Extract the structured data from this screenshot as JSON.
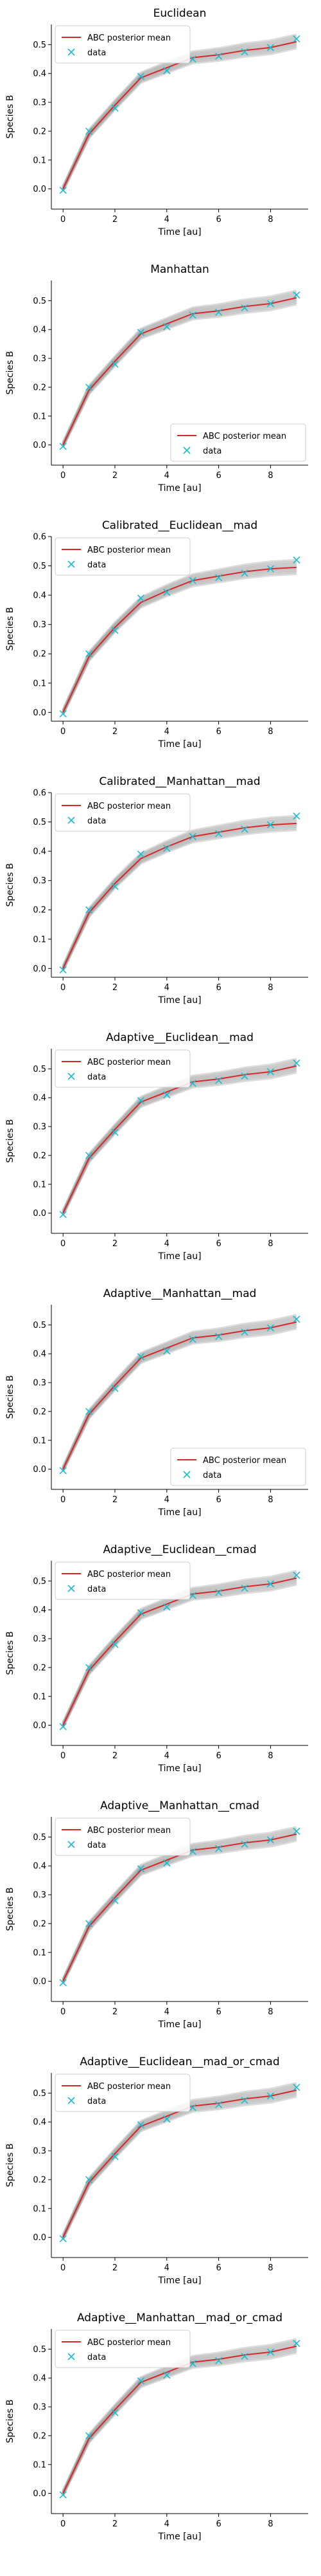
{
  "chart_data": [
    {
      "type": "line",
      "title": "Euclidean",
      "xlabel": "Time [au]",
      "ylabel": "Species B",
      "xlim": [
        -0.45,
        9.45
      ],
      "ylim": [
        -0.07,
        0.57
      ],
      "x": [
        0,
        1,
        2,
        3,
        4,
        5,
        6,
        7,
        8,
        9
      ],
      "xticks": [
        0,
        2,
        4,
        6,
        8
      ],
      "yticks": [
        0.0,
        0.1,
        0.2,
        0.3,
        0.4,
        0.5
      ],
      "grid": false,
      "legend_position": "upper left",
      "legend": [
        {
          "label": "ABC posterior mean",
          "color": "#d62728",
          "marker": "line"
        },
        {
          "label": "data",
          "color": "#17becf",
          "marker": "x"
        }
      ],
      "series": [
        {
          "name": "ABC posterior mean",
          "values": [
            0.0,
            0.19,
            0.29,
            0.385,
            0.42,
            0.455,
            0.465,
            0.48,
            0.49,
            0.51
          ]
        },
        {
          "name": "data",
          "values": [
            -0.005,
            0.2,
            0.28,
            0.39,
            0.41,
            0.45,
            0.46,
            0.475,
            0.49,
            0.52
          ]
        }
      ]
    },
    {
      "type": "line",
      "title": "Manhattan",
      "xlabel": "Time [au]",
      "ylabel": "Species B",
      "xlim": [
        -0.45,
        9.45
      ],
      "ylim": [
        -0.07,
        0.57
      ],
      "x": [
        0,
        1,
        2,
        3,
        4,
        5,
        6,
        7,
        8,
        9
      ],
      "xticks": [
        0,
        2,
        4,
        6,
        8
      ],
      "yticks": [
        0.0,
        0.1,
        0.2,
        0.3,
        0.4,
        0.5
      ],
      "grid": false,
      "legend_position": "lower right",
      "legend": [
        {
          "label": "ABC posterior mean",
          "color": "#d62728",
          "marker": "line"
        },
        {
          "label": "data",
          "color": "#17becf",
          "marker": "x"
        }
      ],
      "series": [
        {
          "name": "ABC posterior mean",
          "values": [
            0.0,
            0.19,
            0.29,
            0.385,
            0.42,
            0.455,
            0.465,
            0.48,
            0.49,
            0.51
          ]
        },
        {
          "name": "data",
          "values": [
            -0.005,
            0.2,
            0.28,
            0.39,
            0.41,
            0.45,
            0.46,
            0.475,
            0.49,
            0.52
          ]
        }
      ]
    },
    {
      "type": "line",
      "title": "Calibrated__Euclidean__mad",
      "xlabel": "Time [au]",
      "ylabel": "Species B",
      "xlim": [
        -0.45,
        9.45
      ],
      "ylim": [
        -0.03,
        0.6
      ],
      "x": [
        0,
        1,
        2,
        3,
        4,
        5,
        6,
        7,
        8,
        9
      ],
      "xticks": [
        0,
        2,
        4,
        6,
        8
      ],
      "yticks": [
        0.0,
        0.1,
        0.2,
        0.3,
        0.4,
        0.5,
        0.6
      ],
      "grid": false,
      "legend_position": "upper left",
      "legend": [
        {
          "label": "ABC posterior mean",
          "color": "#d62728",
          "marker": "line"
        },
        {
          "label": "data",
          "color": "#17becf",
          "marker": "x"
        }
      ],
      "series": [
        {
          "name": "ABC posterior mean",
          "values": [
            0.0,
            0.19,
            0.29,
            0.375,
            0.415,
            0.45,
            0.465,
            0.48,
            0.49,
            0.495
          ]
        },
        {
          "name": "data",
          "values": [
            -0.005,
            0.2,
            0.28,
            0.39,
            0.41,
            0.45,
            0.46,
            0.475,
            0.49,
            0.52
          ]
        }
      ]
    },
    {
      "type": "line",
      "title": "Calibrated__Manhattan__mad",
      "xlabel": "Time [au]",
      "ylabel": "Species B",
      "xlim": [
        -0.45,
        9.45
      ],
      "ylim": [
        -0.03,
        0.6
      ],
      "x": [
        0,
        1,
        2,
        3,
        4,
        5,
        6,
        7,
        8,
        9
      ],
      "xticks": [
        0,
        2,
        4,
        6,
        8
      ],
      "yticks": [
        0.0,
        0.1,
        0.2,
        0.3,
        0.4,
        0.5,
        0.6
      ],
      "grid": false,
      "legend_position": "upper left",
      "legend": [
        {
          "label": "ABC posterior mean",
          "color": "#d62728",
          "marker": "line"
        },
        {
          "label": "data",
          "color": "#17becf",
          "marker": "x"
        }
      ],
      "series": [
        {
          "name": "ABC posterior mean",
          "values": [
            0.0,
            0.19,
            0.29,
            0.375,
            0.415,
            0.45,
            0.465,
            0.48,
            0.49,
            0.495
          ]
        },
        {
          "name": "data",
          "values": [
            -0.005,
            0.2,
            0.28,
            0.39,
            0.41,
            0.45,
            0.46,
            0.475,
            0.49,
            0.52
          ]
        }
      ]
    },
    {
      "type": "line",
      "title": "Adaptive__Euclidean__mad",
      "xlabel": "Time [au]",
      "ylabel": "Species B",
      "xlim": [
        -0.45,
        9.45
      ],
      "ylim": [
        -0.07,
        0.57
      ],
      "x": [
        0,
        1,
        2,
        3,
        4,
        5,
        6,
        7,
        8,
        9
      ],
      "xticks": [
        0,
        2,
        4,
        6,
        8
      ],
      "yticks": [
        0.0,
        0.1,
        0.2,
        0.3,
        0.4,
        0.5
      ],
      "grid": false,
      "legend_position": "upper left",
      "legend": [
        {
          "label": "ABC posterior mean",
          "color": "#d62728",
          "marker": "line"
        },
        {
          "label": "data",
          "color": "#17becf",
          "marker": "x"
        }
      ],
      "series": [
        {
          "name": "ABC posterior mean",
          "values": [
            0.0,
            0.19,
            0.29,
            0.385,
            0.42,
            0.455,
            0.465,
            0.48,
            0.49,
            0.51
          ]
        },
        {
          "name": "data",
          "values": [
            -0.005,
            0.2,
            0.28,
            0.39,
            0.41,
            0.45,
            0.46,
            0.475,
            0.49,
            0.52
          ]
        }
      ]
    },
    {
      "type": "line",
      "title": "Adaptive__Manhattan__mad",
      "xlabel": "Time [au]",
      "ylabel": "Species B",
      "xlim": [
        -0.45,
        9.45
      ],
      "ylim": [
        -0.07,
        0.57
      ],
      "x": [
        0,
        1,
        2,
        3,
        4,
        5,
        6,
        7,
        8,
        9
      ],
      "xticks": [
        0,
        2,
        4,
        6,
        8
      ],
      "yticks": [
        0.0,
        0.1,
        0.2,
        0.3,
        0.4,
        0.5
      ],
      "grid": false,
      "legend_position": "lower right",
      "legend": [
        {
          "label": "ABC posterior mean",
          "color": "#d62728",
          "marker": "line"
        },
        {
          "label": "data",
          "color": "#17becf",
          "marker": "x"
        }
      ],
      "series": [
        {
          "name": "ABC posterior mean",
          "values": [
            0.0,
            0.19,
            0.29,
            0.385,
            0.42,
            0.455,
            0.465,
            0.48,
            0.49,
            0.51
          ]
        },
        {
          "name": "data",
          "values": [
            -0.005,
            0.2,
            0.28,
            0.39,
            0.41,
            0.45,
            0.46,
            0.475,
            0.49,
            0.52
          ]
        }
      ]
    },
    {
      "type": "line",
      "title": "Adaptive__Euclidean__cmad",
      "xlabel": "Time [au]",
      "ylabel": "Species B",
      "xlim": [
        -0.45,
        9.45
      ],
      "ylim": [
        -0.07,
        0.57
      ],
      "x": [
        0,
        1,
        2,
        3,
        4,
        5,
        6,
        7,
        8,
        9
      ],
      "xticks": [
        0,
        2,
        4,
        6,
        8
      ],
      "yticks": [
        0.0,
        0.1,
        0.2,
        0.3,
        0.4,
        0.5
      ],
      "grid": false,
      "legend_position": "upper left",
      "legend": [
        {
          "label": "ABC posterior mean",
          "color": "#d62728",
          "marker": "line"
        },
        {
          "label": "data",
          "color": "#17becf",
          "marker": "x"
        }
      ],
      "series": [
        {
          "name": "ABC posterior mean",
          "values": [
            0.0,
            0.19,
            0.29,
            0.385,
            0.42,
            0.455,
            0.465,
            0.48,
            0.49,
            0.51
          ]
        },
        {
          "name": "data",
          "values": [
            -0.005,
            0.2,
            0.28,
            0.39,
            0.41,
            0.45,
            0.46,
            0.475,
            0.49,
            0.52
          ]
        }
      ]
    },
    {
      "type": "line",
      "title": "Adaptive__Manhattan__cmad",
      "xlabel": "Time [au]",
      "ylabel": "Species B",
      "xlim": [
        -0.45,
        9.45
      ],
      "ylim": [
        -0.07,
        0.57
      ],
      "x": [
        0,
        1,
        2,
        3,
        4,
        5,
        6,
        7,
        8,
        9
      ],
      "xticks": [
        0,
        2,
        4,
        6,
        8
      ],
      "yticks": [
        0.0,
        0.1,
        0.2,
        0.3,
        0.4,
        0.5
      ],
      "grid": false,
      "legend_position": "upper left",
      "legend": [
        {
          "label": "ABC posterior mean",
          "color": "#d62728",
          "marker": "line"
        },
        {
          "label": "data",
          "color": "#17becf",
          "marker": "x"
        }
      ],
      "series": [
        {
          "name": "ABC posterior mean",
          "values": [
            0.0,
            0.19,
            0.29,
            0.385,
            0.42,
            0.455,
            0.465,
            0.48,
            0.49,
            0.51
          ]
        },
        {
          "name": "data",
          "values": [
            -0.005,
            0.2,
            0.28,
            0.39,
            0.41,
            0.45,
            0.46,
            0.475,
            0.49,
            0.52
          ]
        }
      ]
    },
    {
      "type": "line",
      "title": "Adaptive__Euclidean__mad_or_cmad",
      "xlabel": "Time [au]",
      "ylabel": "Species B",
      "xlim": [
        -0.45,
        9.45
      ],
      "ylim": [
        -0.07,
        0.57
      ],
      "x": [
        0,
        1,
        2,
        3,
        4,
        5,
        6,
        7,
        8,
        9
      ],
      "xticks": [
        0,
        2,
        4,
        6,
        8
      ],
      "yticks": [
        0.0,
        0.1,
        0.2,
        0.3,
        0.4,
        0.5
      ],
      "grid": false,
      "legend_position": "upper left",
      "legend": [
        {
          "label": "ABC posterior mean",
          "color": "#d62728",
          "marker": "line"
        },
        {
          "label": "data",
          "color": "#17becf",
          "marker": "x"
        }
      ],
      "series": [
        {
          "name": "ABC posterior mean",
          "values": [
            0.0,
            0.19,
            0.29,
            0.385,
            0.42,
            0.455,
            0.465,
            0.48,
            0.49,
            0.51
          ]
        },
        {
          "name": "data",
          "values": [
            -0.005,
            0.2,
            0.28,
            0.39,
            0.41,
            0.45,
            0.46,
            0.475,
            0.49,
            0.52
          ]
        }
      ]
    },
    {
      "type": "line",
      "title": "Adaptive__Manhattan__mad_or_cmad",
      "xlabel": "Time [au]",
      "ylabel": "Species B",
      "xlim": [
        -0.45,
        9.45
      ],
      "ylim": [
        -0.07,
        0.57
      ],
      "x": [
        0,
        1,
        2,
        3,
        4,
        5,
        6,
        7,
        8,
        9
      ],
      "xticks": [
        0,
        2,
        4,
        6,
        8
      ],
      "yticks": [
        0.0,
        0.1,
        0.2,
        0.3,
        0.4,
        0.5
      ],
      "grid": false,
      "legend_position": "upper left",
      "legend": [
        {
          "label": "ABC posterior mean",
          "color": "#d62728",
          "marker": "line"
        },
        {
          "label": "data",
          "color": "#17becf",
          "marker": "x"
        }
      ],
      "series": [
        {
          "name": "ABC posterior mean",
          "values": [
            0.0,
            0.19,
            0.29,
            0.385,
            0.42,
            0.455,
            0.465,
            0.48,
            0.49,
            0.51
          ]
        },
        {
          "name": "data",
          "values": [
            -0.005,
            0.2,
            0.28,
            0.39,
            0.41,
            0.45,
            0.46,
            0.475,
            0.49,
            0.52
          ]
        }
      ]
    }
  ]
}
